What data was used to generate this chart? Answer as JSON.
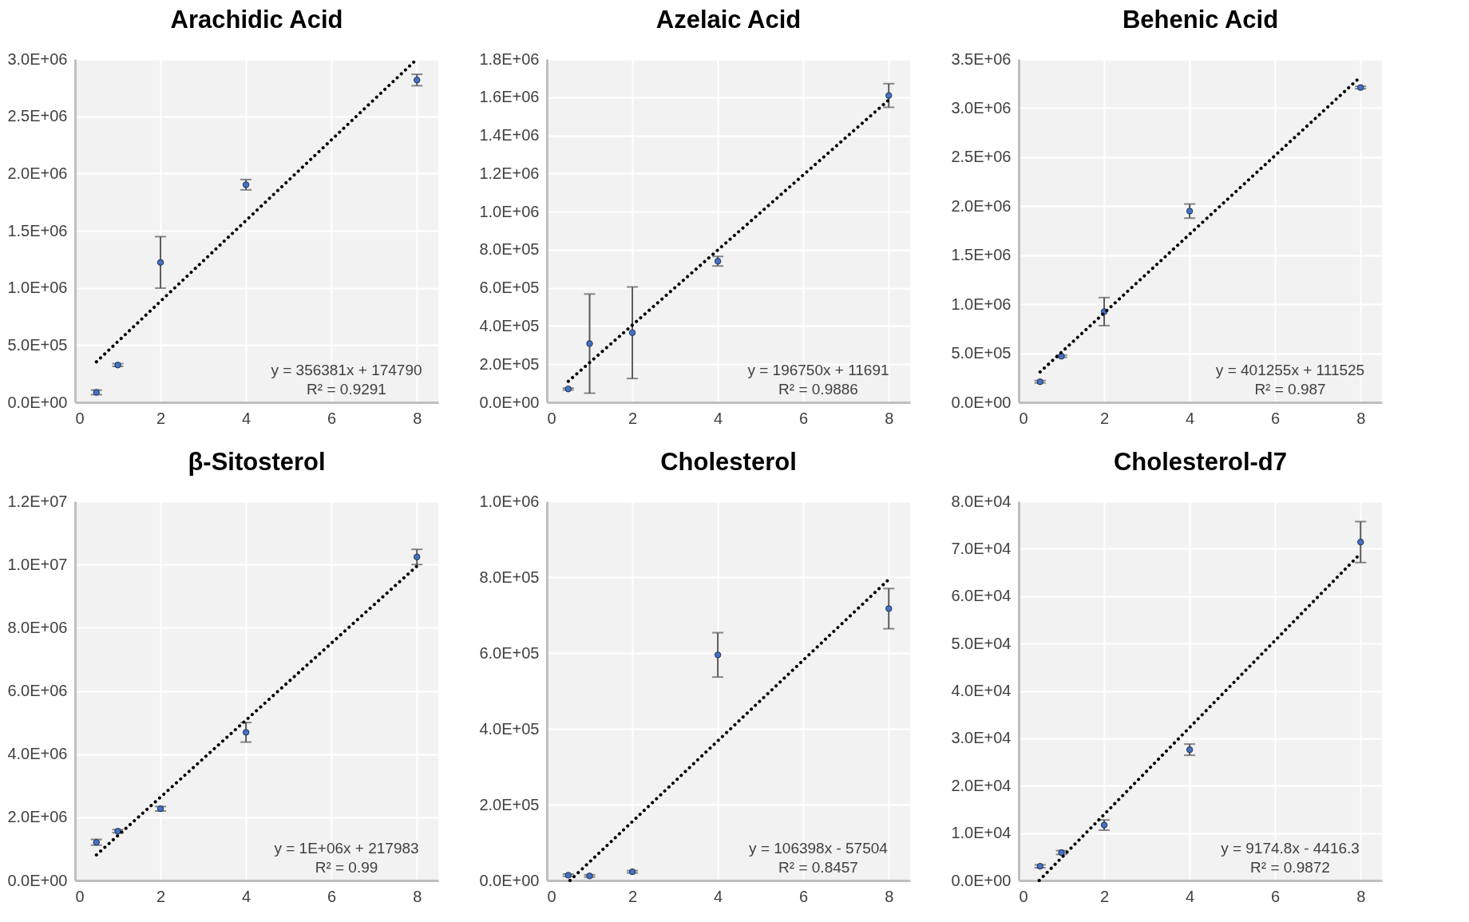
{
  "chart_data": [
    {
      "type": "scatter",
      "title": "Arachidic Acid",
      "x": [
        0.5,
        1,
        2,
        4,
        8
      ],
      "xlim": [
        0,
        8.5
      ],
      "xticks": [
        0,
        2,
        4,
        6,
        8
      ],
      "ylim": [
        0,
        3000000
      ],
      "yticks": [
        {
          "value": 0,
          "label": "0.0E+00"
        },
        {
          "value": 500000,
          "label": "5.0E+05"
        },
        {
          "value": 1000000,
          "label": "1.0E+06"
        },
        {
          "value": 1500000,
          "label": "1.5E+06"
        },
        {
          "value": 2000000,
          "label": "2.0E+06"
        },
        {
          "value": 2500000,
          "label": "2.5E+06"
        },
        {
          "value": 3000000,
          "label": "3.0E+06"
        }
      ],
      "grid": true,
      "annotations": [
        "y = 356381x + 174790",
        "R² = 0.9291"
      ],
      "series": [
        {
          "type": "scatter",
          "marker": "circle",
          "color": "#4472c4",
          "values": [
            87000,
            326000,
            1223000,
            1902000,
            2817000
          ],
          "errors": [
            20000,
            12000,
            225000,
            45000,
            50000
          ]
        },
        {
          "type": "line",
          "marker": "none",
          "color": "#000000",
          "line_style": "dotted",
          "x": [
            0.5,
            8
          ],
          "values": [
            354000,
            3000000
          ]
        }
      ]
    },
    {
      "type": "scatter",
      "title": "Azelaic Acid",
      "x": [
        0.5,
        1,
        2,
        4,
        8
      ],
      "xlim": [
        0,
        8.5
      ],
      "xticks": [
        0,
        2,
        4,
        6,
        8
      ],
      "ylim": [
        0,
        1800000
      ],
      "yticks": [
        {
          "value": 0,
          "label": "0.0E+00"
        },
        {
          "value": 200000,
          "label": "2.0E+05"
        },
        {
          "value": 400000,
          "label": "4.0E+05"
        },
        {
          "value": 600000,
          "label": "6.0E+05"
        },
        {
          "value": 800000,
          "label": "8.0E+05"
        },
        {
          "value": 1000000,
          "label": "1.0E+06"
        },
        {
          "value": 1200000,
          "label": "1.2E+06"
        },
        {
          "value": 1400000,
          "label": "1.4E+06"
        },
        {
          "value": 1600000,
          "label": "1.6E+06"
        },
        {
          "value": 1800000,
          "label": "1.8E+06"
        }
      ],
      "grid": true,
      "annotations": [
        "y = 196750x + 11691",
        "R² = 0.9886"
      ],
      "series": [
        {
          "type": "scatter",
          "marker": "circle",
          "color": "#4472c4",
          "values": [
            70000,
            308000,
            365000,
            740000,
            1609000
          ],
          "errors": [
            5000,
            260000,
            240000,
            25000,
            62000
          ]
        },
        {
          "type": "line",
          "marker": "none",
          "color": "#000000",
          "line_style": "dotted",
          "x": [
            0.5,
            8
          ],
          "values": [
            110000,
            1586000
          ]
        }
      ]
    },
    {
      "type": "scatter",
      "title": "Behenic Acid",
      "x": [
        0.5,
        1,
        2,
        4,
        8
      ],
      "xlim": [
        0,
        8.5
      ],
      "xticks": [
        0,
        2,
        4,
        6,
        8
      ],
      "ylim": [
        0,
        3500000
      ],
      "yticks": [
        {
          "value": 0,
          "label": "0.0E+00"
        },
        {
          "value": 500000,
          "label": "5.0E+05"
        },
        {
          "value": 1000000,
          "label": "1.0E+06"
        },
        {
          "value": 1500000,
          "label": "1.5E+06"
        },
        {
          "value": 2000000,
          "label": "2.0E+06"
        },
        {
          "value": 2500000,
          "label": "2.5E+06"
        },
        {
          "value": 3000000,
          "label": "3.0E+06"
        },
        {
          "value": 3500000,
          "label": "3.5E+06"
        }
      ],
      "grid": true,
      "annotations": [
        "y = 401255x + 111525",
        "R² = 0.987"
      ],
      "series": [
        {
          "type": "scatter",
          "marker": "circle",
          "color": "#4472c4",
          "values": [
            210000,
            470000,
            925000,
            1950000,
            3210000
          ],
          "errors": [
            12000,
            12000,
            143000,
            72000,
            12000
          ]
        },
        {
          "type": "line",
          "marker": "none",
          "color": "#000000",
          "line_style": "dotted",
          "x": [
            0.5,
            8
          ],
          "values": [
            310000,
            3320000
          ]
        }
      ]
    },
    {
      "type": "scatter",
      "title": "β-Sitosterol",
      "x": [
        0.5,
        1,
        2,
        4,
        8
      ],
      "xlim": [
        0,
        8.5
      ],
      "xticks": [
        0,
        2,
        4,
        6,
        8
      ],
      "ylim": [
        0,
        12000000
      ],
      "yticks": [
        {
          "value": 0,
          "label": "0.0E+00"
        },
        {
          "value": 2000000,
          "label": "2.0E+06"
        },
        {
          "value": 4000000,
          "label": "4.0E+06"
        },
        {
          "value": 6000000,
          "label": "6.0E+06"
        },
        {
          "value": 8000000,
          "label": "8.0E+06"
        },
        {
          "value": 10000000,
          "label": "1.0E+07"
        },
        {
          "value": 12000000,
          "label": "1.2E+07"
        }
      ],
      "grid": true,
      "annotations": [
        "y = 1E+06x + 217983",
        "R² = 0.99"
      ],
      "series": [
        {
          "type": "scatter",
          "marker": "circle",
          "color": "#4472c4",
          "values": [
            1210000,
            1560000,
            2270000,
            4690000,
            10240000
          ],
          "errors": [
            90000,
            50000,
            70000,
            310000,
            240000
          ]
        },
        {
          "type": "line",
          "marker": "none",
          "color": "#000000",
          "line_style": "dotted",
          "x": [
            0.5,
            8
          ],
          "values": [
            810000,
            9950000
          ]
        }
      ]
    },
    {
      "type": "scatter",
      "title": "Cholesterol",
      "x": [
        0.5,
        1,
        2,
        4,
        8
      ],
      "xlim": [
        0,
        8.5
      ],
      "xticks": [
        0,
        2,
        4,
        6,
        8
      ],
      "ylim": [
        0,
        1000000
      ],
      "yticks": [
        {
          "value": 0,
          "label": "0.0E+00"
        },
        {
          "value": 200000,
          "label": "2.0E+05"
        },
        {
          "value": 400000,
          "label": "4.0E+05"
        },
        {
          "value": 600000,
          "label": "6.0E+05"
        },
        {
          "value": 800000,
          "label": "8.0E+05"
        },
        {
          "value": 1000000,
          "label": "1.0E+06"
        }
      ],
      "grid": true,
      "annotations": [
        "y = 106398x - 57504",
        "R² = 0.8457"
      ],
      "series": [
        {
          "type": "scatter",
          "marker": "circle",
          "color": "#4472c4",
          "values": [
            14000,
            12000,
            23000,
            595000,
            717000
          ],
          "errors": [
            3000,
            3000,
            3000,
            58500,
            53000
          ]
        },
        {
          "type": "line",
          "marker": "none",
          "color": "#000000",
          "line_style": "dotted",
          "x": [
            0.54,
            8
          ],
          "values": [
            0,
            794000
          ]
        }
      ]
    },
    {
      "type": "scatter",
      "title": "Cholesterol-d7",
      "x": [
        0.5,
        1,
        2,
        4,
        8
      ],
      "xlim": [
        0,
        8.5
      ],
      "xticks": [
        0,
        2,
        4,
        6,
        8
      ],
      "ylim": [
        0,
        80000
      ],
      "yticks": [
        {
          "value": 0,
          "label": "0.0E+00"
        },
        {
          "value": 10000,
          "label": "1.0E+04"
        },
        {
          "value": 20000,
          "label": "2.0E+04"
        },
        {
          "value": 30000,
          "label": "3.0E+04"
        },
        {
          "value": 40000,
          "label": "4.0E+04"
        },
        {
          "value": 50000,
          "label": "5.0E+04"
        },
        {
          "value": 60000,
          "label": "6.0E+04"
        },
        {
          "value": 70000,
          "label": "7.0E+04"
        },
        {
          "value": 80000,
          "label": "8.0E+04"
        }
      ],
      "grid": true,
      "annotations": [
        "y = 9174.8x - 4416.3",
        "R² = 0.9872"
      ],
      "series": [
        {
          "type": "scatter",
          "marker": "circle",
          "color": "#4472c4",
          "values": [
            3000,
            5900,
            11700,
            27600,
            71400
          ],
          "errors": [
            300,
            400,
            1080,
            1180,
            4320
          ]
        },
        {
          "type": "line",
          "marker": "none",
          "color": "#000000",
          "line_style": "dotted",
          "x": [
            0.48,
            8
          ],
          "values": [
            0,
            69000
          ]
        }
      ]
    }
  ]
}
